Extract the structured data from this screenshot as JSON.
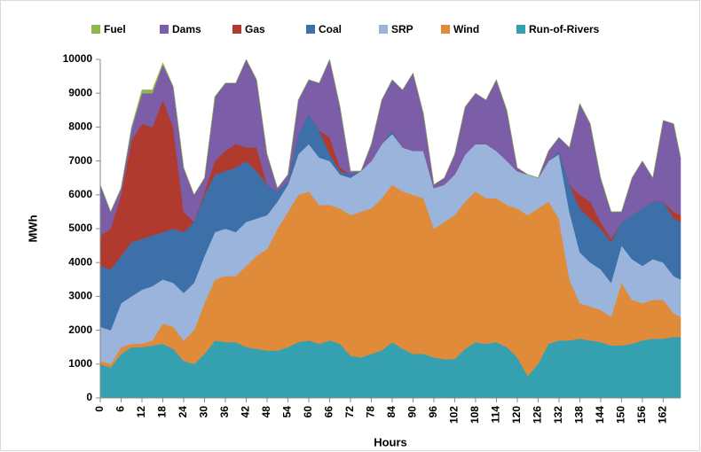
{
  "chart_data": {
    "type": "stacked_area",
    "xlabel": "Hours",
    "ylabel": "MWh",
    "x": [
      0,
      3,
      6,
      9,
      12,
      15,
      18,
      21,
      24,
      27,
      30,
      33,
      36,
      39,
      42,
      45,
      48,
      51,
      54,
      57,
      60,
      63,
      66,
      69,
      72,
      75,
      78,
      81,
      84,
      87,
      90,
      93,
      96,
      99,
      102,
      105,
      108,
      111,
      114,
      117,
      120,
      123,
      126,
      129,
      132,
      135,
      138,
      141,
      144,
      147,
      150,
      153,
      156,
      159,
      162,
      165,
      167
    ],
    "xlim": [
      0,
      167
    ],
    "xticks": [
      0,
      6,
      12,
      18,
      24,
      30,
      36,
      42,
      48,
      54,
      60,
      66,
      72,
      78,
      84,
      90,
      96,
      102,
      108,
      114,
      120,
      126,
      132,
      138,
      144,
      150,
      156,
      162
    ],
    "ylim": [
      0,
      10000
    ],
    "yticks": [
      0,
      1000,
      2000,
      3000,
      4000,
      5000,
      6000,
      7000,
      8000,
      9000,
      10000
    ],
    "series": [
      {
        "name": "Fuel",
        "color": "#8fb84c",
        "values": [
          0,
          0,
          0,
          50,
          100,
          100,
          50,
          0,
          0,
          0,
          0,
          0,
          0,
          0,
          0,
          0,
          0,
          0,
          0,
          0,
          0,
          0,
          0,
          0,
          0,
          0,
          0,
          0,
          0,
          0,
          0,
          0,
          0,
          0,
          0,
          0,
          0,
          0,
          0,
          0,
          0,
          0,
          0,
          0,
          0,
          0,
          0,
          0,
          0,
          0,
          0,
          0,
          0,
          0,
          0,
          0,
          0
        ]
      },
      {
        "name": "Dams",
        "color": "#7b5ea7",
        "values": [
          1500,
          500,
          200,
          350,
          900,
          1000,
          1050,
          1200,
          1300,
          800,
          400,
          1900,
          2000,
          1800,
          2600,
          2000,
          900,
          100,
          200,
          1000,
          1000,
          1400,
          2300,
          1800,
          100,
          0,
          500,
          1300,
          1500,
          1700,
          2300,
          1100,
          100,
          200,
          600,
          1400,
          1500,
          1300,
          2100,
          1500,
          100,
          0,
          0,
          300,
          400,
          1100,
          2700,
          2300,
          1300,
          800,
          300,
          1100,
          1400,
          700,
          2400,
          2600,
          1700
        ]
      },
      {
        "name": "Gas",
        "color": "#b03a2e",
        "values": [
          900,
          1200,
          1800,
          3000,
          3400,
          3200,
          3900,
          3000,
          600,
          0,
          100,
          400,
          600,
          700,
          400,
          700,
          0,
          0,
          0,
          0,
          0,
          0,
          500,
          100,
          0,
          0,
          0,
          0,
          0,
          0,
          0,
          0,
          0,
          0,
          0,
          0,
          0,
          0,
          0,
          0,
          0,
          0,
          0,
          0,
          0,
          0,
          400,
          500,
          200,
          100,
          0,
          0,
          0,
          0,
          0,
          200,
          200
        ]
      },
      {
        "name": "Coal",
        "color": "#3d6fa8",
        "values": [
          1800,
          1800,
          1400,
          1600,
          1500,
          1500,
          1400,
          1600,
          1800,
          1800,
          1800,
          1700,
          1700,
          1900,
          1800,
          1400,
          900,
          300,
          100,
          600,
          900,
          800,
          200,
          100,
          100,
          0,
          0,
          0,
          100,
          0,
          0,
          0,
          0,
          0,
          0,
          0,
          0,
          0,
          0,
          0,
          0,
          0,
          0,
          0,
          100,
          800,
          1300,
          1300,
          1200,
          1200,
          700,
          1300,
          1700,
          1700,
          1800,
          1700,
          1700
        ]
      },
      {
        "name": "SRP",
        "color": "#9ab4dc",
        "values": [
          1000,
          1000,
          1300,
          1400,
          1600,
          1600,
          1300,
          1300,
          1400,
          1400,
          1400,
          1400,
          1400,
          1300,
          1300,
          1100,
          1000,
          800,
          800,
          1200,
          1400,
          1400,
          1300,
          1000,
          1100,
          1200,
          1400,
          1600,
          1500,
          1300,
          1300,
          1400,
          1200,
          1100,
          1200,
          1400,
          1400,
          1600,
          1400,
          1300,
          1100,
          1200,
          900,
          1200,
          1900,
          2000,
          1500,
          1300,
          1200,
          1000,
          1100,
          1200,
          1100,
          1200,
          1100,
          1100,
          1100
        ]
      },
      {
        "name": "Wind",
        "color": "#e08b3a",
        "values": [
          100,
          100,
          200,
          100,
          100,
          150,
          600,
          650,
          600,
          1000,
          1500,
          1800,
          1950,
          1950,
          2400,
          2750,
          3000,
          3600,
          4000,
          4350,
          4400,
          4100,
          4000,
          4000,
          4150,
          4300,
          4300,
          4500,
          4650,
          4650,
          4700,
          4600,
          3800,
          4050,
          4250,
          4350,
          4450,
          4300,
          4250,
          4200,
          4400,
          4750,
          4600,
          4200,
          3600,
          1800,
          1050,
          1000,
          950,
          850,
          1850,
          1300,
          1100,
          1150,
          1150,
          700,
          600
        ]
      },
      {
        "name": "Run-of-Rivers",
        "color": "#35a0b0",
        "values": [
          1000,
          900,
          1300,
          1500,
          1500,
          1550,
          1600,
          1450,
          1100,
          1000,
          1300,
          1700,
          1650,
          1650,
          1500,
          1450,
          1400,
          1400,
          1500,
          1650,
          1700,
          1600,
          1700,
          1600,
          1250,
          1200,
          1300,
          1400,
          1650,
          1450,
          1300,
          1300,
          1200,
          1150,
          1150,
          1450,
          1650,
          1600,
          1650,
          1500,
          1200,
          650,
          1000,
          1600,
          1700,
          1700,
          1750,
          1700,
          1650,
          1550,
          1550,
          1600,
          1700,
          1750,
          1750,
          1800,
          1800
        ]
      }
    ]
  }
}
